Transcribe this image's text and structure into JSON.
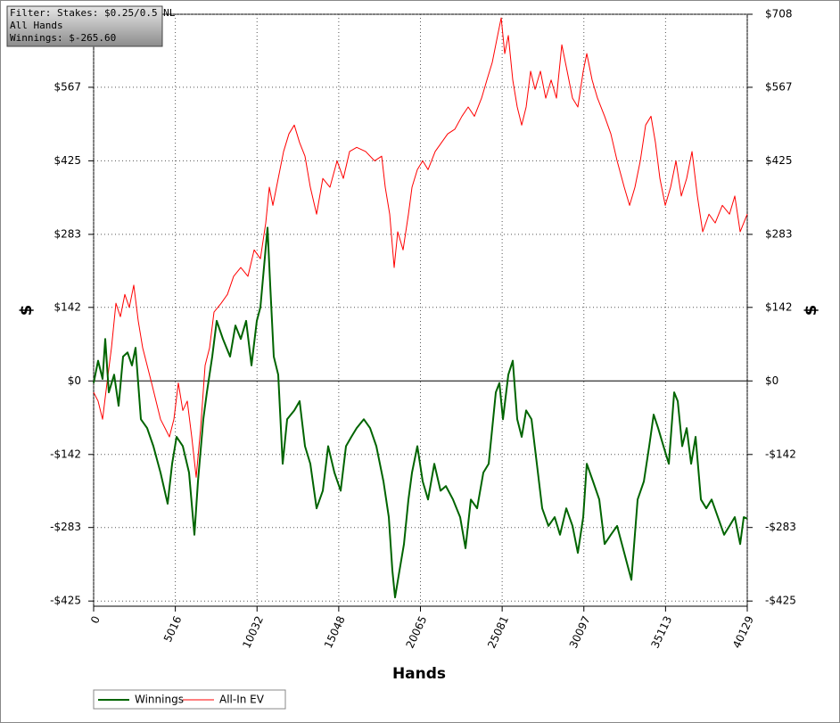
{
  "chart_data": {
    "type": "line",
    "annotations": [
      "Filter: Stakes: $0.25/0.5 NL",
      "All Hands",
      "Winnings: $-265.60"
    ],
    "xlabel": "Hands",
    "ylabel": "$",
    "y2label": "$",
    "xlim": [
      0,
      40129
    ],
    "xticks": [
      0,
      5016,
      10032,
      15048,
      20065,
      25081,
      30097,
      35113,
      40129
    ],
    "ylim": [
      -435,
      708
    ],
    "yticks": [
      {
        "value": 708,
        "label": "$708"
      },
      {
        "value": 567,
        "label": "$567"
      },
      {
        "value": 425,
        "label": "$425"
      },
      {
        "value": 283,
        "label": "$283"
      },
      {
        "value": 142,
        "label": "$142"
      },
      {
        "value": 0,
        "label": "$0"
      },
      {
        "value": -142,
        "label": "-$142"
      },
      {
        "value": -283,
        "label": "-$283"
      },
      {
        "value": -425,
        "label": "-$425"
      }
    ],
    "y2lim": [
      -435,
      708
    ],
    "y2ticks": [
      {
        "value": 708,
        "label": "$708"
      },
      {
        "value": 567,
        "label": "$567"
      },
      {
        "value": 425,
        "label": "$425"
      },
      {
        "value": 283,
        "label": "$283"
      },
      {
        "value": 142,
        "label": "$142"
      },
      {
        "value": 0,
        "label": "$0"
      },
      {
        "value": -142,
        "label": "-$142"
      },
      {
        "value": -283,
        "label": "-$283"
      },
      {
        "value": -425,
        "label": "-$425"
      }
    ],
    "grid": true,
    "legend": "bottom-left",
    "series": [
      {
        "name": "Winnings",
        "color": "#006400",
        "x": [
          0,
          274,
          548,
          712,
          931,
          1259,
          1533,
          1807,
          2081,
          2354,
          2573,
          2902,
          3285,
          3668,
          4106,
          4544,
          4818,
          5092,
          5475,
          5858,
          6187,
          6406,
          6734,
          6953,
          7282,
          7556,
          7939,
          8377,
          8705,
          9034,
          9362,
          9691,
          10019,
          10238,
          10457,
          10676,
          10841,
          11060,
          11333,
          11607,
          11881,
          12319,
          12647,
          12976,
          13304,
          13688,
          14071,
          14399,
          14783,
          15166,
          15494,
          15823,
          16151,
          16589,
          16973,
          17356,
          17794,
          18122,
          18341,
          18506,
          18779,
          19053,
          19327,
          19546,
          19874,
          20203,
          20531,
          20915,
          21298,
          21626,
          22064,
          22502,
          22831,
          23159,
          23543,
          23926,
          24254,
          24473,
          24692,
          24911,
          25130,
          25459,
          25733,
          26006,
          26280,
          26554,
          26882,
          27211,
          27539,
          27923,
          28306,
          28634,
          29018,
          29401,
          29729,
          30058,
          30277,
          30660,
          31043,
          31372,
          31755,
          32138,
          32576,
          33014,
          33398,
          33781,
          34109,
          34383,
          34657,
          34985,
          35314,
          35642,
          35861,
          36135,
          36409,
          36683,
          36956,
          37285,
          37613,
          37942,
          38325,
          38708,
          39037,
          39365,
          39694,
          39913,
          40129
        ],
        "values": [
          -4,
          39,
          4,
          81,
          -22,
          12,
          -48,
          47,
          55,
          30,
          64,
          -74,
          -91,
          -126,
          -177,
          -237,
          -160,
          -108,
          -126,
          -177,
          -297,
          -194,
          -74,
          -22,
          47,
          116,
          81,
          47,
          107,
          81,
          116,
          30,
          116,
          142,
          219,
          296,
          185,
          47,
          12,
          -160,
          -74,
          -57,
          -39,
          -126,
          -160,
          -246,
          -212,
          -126,
          -177,
          -212,
          -126,
          -108,
          -91,
          -74,
          -91,
          -126,
          -194,
          -263,
          -366,
          -418,
          -366,
          -315,
          -229,
          -177,
          -126,
          -194,
          -229,
          -160,
          -212,
          -203,
          -229,
          -263,
          -323,
          -229,
          -246,
          -177,
          -160,
          -91,
          -22,
          -4,
          -74,
          12,
          39,
          -74,
          -108,
          -57,
          -74,
          -160,
          -246,
          -280,
          -263,
          -297,
          -246,
          -280,
          -332,
          -263,
          -160,
          -194,
          -229,
          -315,
          -297,
          -280,
          -332,
          -384,
          -229,
          -194,
          -126,
          -65,
          -91,
          -126,
          -160,
          -22,
          -39,
          -126,
          -91,
          -160,
          -108,
          -229,
          -246,
          -229,
          -263,
          -297,
          -280,
          -263,
          -315,
          -263,
          -266
        ]
      },
      {
        "name": "All-In EV",
        "color": "#ff0000",
        "x": [
          0,
          274,
          548,
          821,
          1095,
          1369,
          1643,
          1916,
          2190,
          2464,
          2738,
          3011,
          3285,
          3559,
          3833,
          4106,
          4380,
          4654,
          4928,
          5201,
          5475,
          5749,
          6023,
          6296,
          6570,
          6844,
          7118,
          7391,
          7829,
          8213,
          8596,
          9034,
          9472,
          9855,
          10238,
          10567,
          10786,
          11005,
          11333,
          11662,
          11990,
          12319,
          12647,
          12976,
          13304,
          13688,
          14071,
          14509,
          14947,
          15330,
          15713,
          16151,
          16699,
          17246,
          17684,
          17903,
          18177,
          18451,
          18670,
          18998,
          19327,
          19546,
          19874,
          20203,
          20531,
          20969,
          21353,
          21736,
          22174,
          22612,
          22995,
          23378,
          23816,
          24145,
          24473,
          24802,
          25021,
          25240,
          25459,
          25733,
          26006,
          26280,
          26554,
          26828,
          27101,
          27430,
          27758,
          28087,
          28415,
          28744,
          29072,
          29401,
          29729,
          30058,
          30277,
          30605,
          30934,
          31372,
          31755,
          32138,
          32576,
          32905,
          33233,
          33562,
          33890,
          34219,
          34493,
          34766,
          35095,
          35423,
          35752,
          36080,
          36409,
          36737,
          37066,
          37394,
          37778,
          38161,
          38599,
          39037,
          39365,
          39694,
          40129
        ],
        "values": [
          -22,
          -39,
          -74,
          -4,
          64,
          150,
          124,
          167,
          142,
          185,
          116,
          64,
          30,
          -4,
          -39,
          -74,
          -91,
          -108,
          -74,
          -4,
          -57,
          -39,
          -108,
          -186,
          -91,
          30,
          64,
          133,
          150,
          167,
          202,
          219,
          202,
          253,
          236,
          305,
          374,
          339,
          391,
          443,
          477,
          494,
          460,
          434,
          374,
          322,
          391,
          374,
          425,
          391,
          443,
          451,
          443,
          425,
          434,
          374,
          322,
          219,
          288,
          253,
          322,
          374,
          408,
          425,
          408,
          443,
          460,
          477,
          486,
          511,
          529,
          511,
          546,
          581,
          615,
          667,
          701,
          632,
          667,
          581,
          529,
          494,
          529,
          598,
          563,
          598,
          546,
          581,
          546,
          649,
          598,
          546,
          529,
          598,
          632,
          581,
          546,
          511,
          477,
          425,
          374,
          339,
          374,
          425,
          494,
          511,
          460,
          391,
          339,
          374,
          425,
          357,
          391,
          443,
          357,
          288,
          322,
          305,
          339,
          322,
          357,
          288,
          322
        ]
      }
    ]
  }
}
